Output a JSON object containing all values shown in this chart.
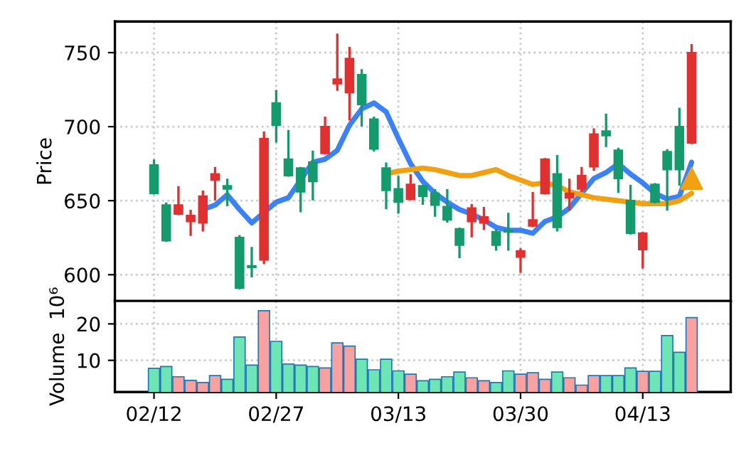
{
  "chart_data": [
    {
      "type": "candlestick",
      "ylabel": "Price",
      "categories": [
        null,
        null,
        null,
        null,
        null,
        null,
        null,
        null,
        null,
        null,
        null,
        null,
        null,
        null,
        null,
        null,
        null,
        null,
        null,
        null,
        null,
        null,
        null,
        null,
        null,
        null,
        null,
        null,
        null,
        null,
        null,
        null,
        null,
        null,
        null,
        null,
        null,
        null,
        null,
        null,
        null,
        null,
        null,
        null,
        null
      ],
      "ohlc": [
        [
          655,
          677,
          655,
          674
        ],
        [
          623,
          648,
          623,
          647
        ],
        [
          647,
          659,
          641,
          641
        ],
        [
          640,
          643,
          627,
          636
        ],
        [
          653,
          656,
          630,
          635
        ],
        [
          668,
          672,
          651,
          664
        ],
        [
          658,
          664,
          647,
          660
        ],
        [
          591,
          626,
          591,
          625
        ],
        [
          605,
          618,
          599,
          606
        ],
        [
          692,
          696,
          608,
          610
        ],
        [
          701,
          724,
          690,
          716
        ],
        [
          667,
          697,
          667,
          678
        ],
        [
          656,
          672,
          643,
          672
        ],
        [
          663,
          683,
          651,
          676
        ],
        [
          700,
          706,
          682,
          682
        ],
        [
          732,
          762,
          725,
          729
        ],
        [
          746,
          753,
          705,
          723
        ],
        [
          715,
          738,
          701,
          735
        ],
        [
          685,
          706,
          684,
          705
        ],
        [
          657,
          675,
          645,
          672
        ],
        [
          649,
          666,
          642,
          658
        ],
        [
          661,
          667,
          651,
          651
        ],
        [
          653,
          660,
          648,
          660
        ],
        [
          647,
          657,
          640,
          655
        ],
        [
          637,
          657,
          636,
          646
        ],
        [
          620,
          631,
          612,
          631
        ],
        [
          645,
          647,
          626,
          636
        ],
        [
          639,
          645,
          631,
          635
        ],
        [
          620,
          630,
          617,
          629
        ],
        [
          629,
          641,
          617,
          630
        ],
        [
          616,
          617,
          602,
          612
        ],
        [
          637,
          655,
          633,
          633
        ],
        [
          678,
          678,
          655,
          655
        ],
        [
          632,
          680,
          630,
          668
        ],
        [
          655,
          664,
          644,
          652
        ],
        [
          667,
          672,
          657,
          658
        ],
        [
          695,
          698,
          671,
          673
        ],
        [
          694,
          708,
          687,
          697
        ],
        [
          665,
          685,
          656,
          684
        ],
        [
          628,
          660,
          628,
          650
        ],
        [
          628,
          628,
          605,
          617
        ],
        [
          649,
          661,
          649,
          661
        ],
        [
          671,
          684,
          644,
          683
        ],
        [
          671,
          712,
          661,
          700
        ],
        [
          750,
          755,
          689,
          689
        ]
      ],
      "colors": [
        "#149a6c",
        "#149a6c",
        "#e03030",
        "#e03030",
        "#e03030",
        "#e03030",
        "#149a6c",
        "#149a6c",
        "#149a6c",
        "#e03030",
        "#149a6c",
        "#149a6c",
        "#149a6c",
        "#149a6c",
        "#e03030",
        "#e03030",
        "#e03030",
        "#149a6c",
        "#149a6c",
        "#149a6c",
        "#149a6c",
        "#e03030",
        "#149a6c",
        "#149a6c",
        "#149a6c",
        "#149a6c",
        "#e03030",
        "#e03030",
        "#149a6c",
        "#149a6c",
        "#e03030",
        "#e03030",
        "#e03030",
        "#149a6c",
        "#e03030",
        "#e03030",
        "#e03030",
        "#149a6c",
        "#149a6c",
        "#149a6c",
        "#e03030",
        "#149a6c",
        "#149a6c",
        "#149a6c",
        "#e03030"
      ],
      "series": [
        {
          "type": "line",
          "color": "#3b82f6",
          "values": [
            null,
            null,
            null,
            null,
            644,
            647,
            654,
            644,
            635,
            642,
            649,
            652,
            664,
            676,
            678,
            684,
            701,
            712,
            716,
            710,
            692,
            675,
            663,
            655,
            649,
            644,
            641,
            637,
            632,
            630,
            630,
            628,
            636,
            639,
            645,
            655,
            665,
            669,
            675,
            668,
            662,
            655,
            651,
            653,
            676
          ]
        },
        {
          "type": "line",
          "color": "#f0a010",
          "values": [
            null,
            null,
            null,
            null,
            null,
            null,
            null,
            null,
            null,
            null,
            null,
            null,
            null,
            null,
            null,
            null,
            null,
            null,
            null,
            668,
            670,
            671,
            672,
            671,
            669,
            667,
            667,
            669,
            671,
            667,
            664,
            661,
            662,
            660,
            656,
            654,
            652,
            651,
            650,
            649,
            648,
            648,
            648,
            650,
            655
          ]
        },
        {
          "type": "scatter",
          "color": "#f0a010",
          "marker": "triangle",
          "values": [
            null,
            null,
            null,
            null,
            null,
            null,
            null,
            null,
            null,
            null,
            null,
            null,
            null,
            null,
            null,
            null,
            null,
            null,
            null,
            null,
            null,
            null,
            null,
            null,
            null,
            null,
            null,
            null,
            null,
            null,
            null,
            null,
            null,
            null,
            null,
            null,
            null,
            null,
            null,
            null,
            null,
            null,
            null,
            null,
            665
          ]
        }
      ],
      "ylim": [
        582,
        771
      ],
      "yticks": [
        600,
        650,
        700,
        750
      ],
      "grid": true,
      "tick_labels": "y"
    },
    {
      "type": "bar",
      "ylabel": "Volume  10⁶",
      "categories": [
        "02/12",
        null,
        null,
        null,
        null,
        null,
        null,
        null,
        null,
        null,
        "02/27",
        null,
        null,
        null,
        null,
        null,
        null,
        null,
        null,
        null,
        "03/13",
        null,
        null,
        null,
        null,
        null,
        null,
        null,
        null,
        null,
        "03/30",
        null,
        null,
        null,
        null,
        null,
        null,
        null,
        null,
        null,
        "04/13",
        null,
        null,
        null,
        null
      ],
      "values": [
        7.8,
        8.3,
        5.5,
        4.5,
        3.9,
        5.8,
        4.8,
        16.4,
        8.7,
        23.6,
        15.2,
        9,
        8.7,
        8.3,
        7.9,
        14.8,
        13.9,
        10.3,
        7.4,
        10.3,
        7.1,
        6.2,
        4.4,
        4.8,
        5.5,
        6.8,
        5.2,
        4.4,
        3.9,
        7.1,
        6.2,
        6.6,
        4.8,
        6.8,
        5.2,
        3.2,
        5.8,
        5.8,
        5.8,
        7.9,
        7,
        7,
        16.8,
        12.2,
        21.7
      ],
      "colors": [
        "#6ee5b4",
        "#6ee5b4",
        "#f7a1a1",
        "#f7a1a1",
        "#f7a1a1",
        "#f7a1a1",
        "#6ee5b4",
        "#6ee5b4",
        "#6ee5b4",
        "#f7a1a1",
        "#6ee5b4",
        "#6ee5b4",
        "#6ee5b4",
        "#6ee5b4",
        "#f7a1a1",
        "#f7a1a1",
        "#f7a1a1",
        "#6ee5b4",
        "#6ee5b4",
        "#6ee5b4",
        "#6ee5b4",
        "#f7a1a1",
        "#6ee5b4",
        "#6ee5b4",
        "#6ee5b4",
        "#6ee5b4",
        "#f7a1a1",
        "#f7a1a1",
        "#6ee5b4",
        "#6ee5b4",
        "#f7a1a1",
        "#f7a1a1",
        "#f7a1a1",
        "#6ee5b4",
        "#f7a1a1",
        "#f7a1a1",
        "#f7a1a1",
        "#6ee5b4",
        "#6ee5b4",
        "#6ee5b4",
        "#f7a1a1",
        "#6ee5b4",
        "#6ee5b4",
        "#6ee5b4",
        "#f7a1a1"
      ],
      "ylim": [
        1.3,
        26.3
      ],
      "yticks": [
        10,
        20
      ],
      "grid": true
    }
  ]
}
